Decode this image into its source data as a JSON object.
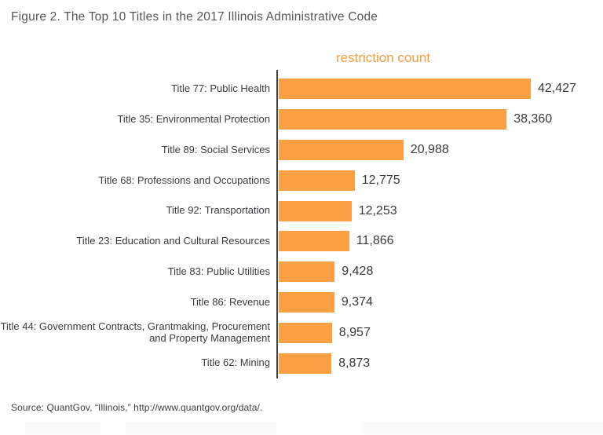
{
  "figure_title": "Figure 2. The Top 10 Titles in the 2017 Illinois Administrative Code",
  "source_note": "Source: QuantGov, “Illinois,” http://www.quantgov.org/data/.",
  "chart_data": {
    "type": "bar",
    "orientation": "horizontal",
    "title": "Figure 2. The Top 10 Titles in the 2017 Illinois Administrative Code",
    "axis_top_label": "restriction count",
    "categories": [
      "Title 77: Public Health",
      "Title 35: Environmental Protection",
      "Title 89: Social Services",
      "Title 68: Professions and Occupations",
      "Title 92: Transportation",
      "Title 23: Education and Cultural Resources",
      "Title 83: Public Utilities",
      "Title 86: Revenue",
      "Title 44: Government Contracts, Grantmaking, Procurement and Property Management",
      "Title 62: Mining"
    ],
    "values": [
      42427,
      38360,
      20988,
      12775,
      12253,
      11866,
      9428,
      9374,
      8957,
      8873
    ],
    "value_labels": [
      "42,427",
      "38,360",
      "20,988",
      "12,775",
      "12,253",
      "11,866",
      "9,428",
      "9,374",
      "8,957",
      "8,873"
    ],
    "xlim": [
      0,
      44500
    ],
    "grid": false,
    "legend": "none",
    "bar_color": "#FAA042",
    "axis_color": "#3D3D3D",
    "category_label_color": "#3B3C40",
    "value_label_color": "#3A3A3A",
    "title_color": "#55565A",
    "series_label_color": "#F89C3C"
  }
}
